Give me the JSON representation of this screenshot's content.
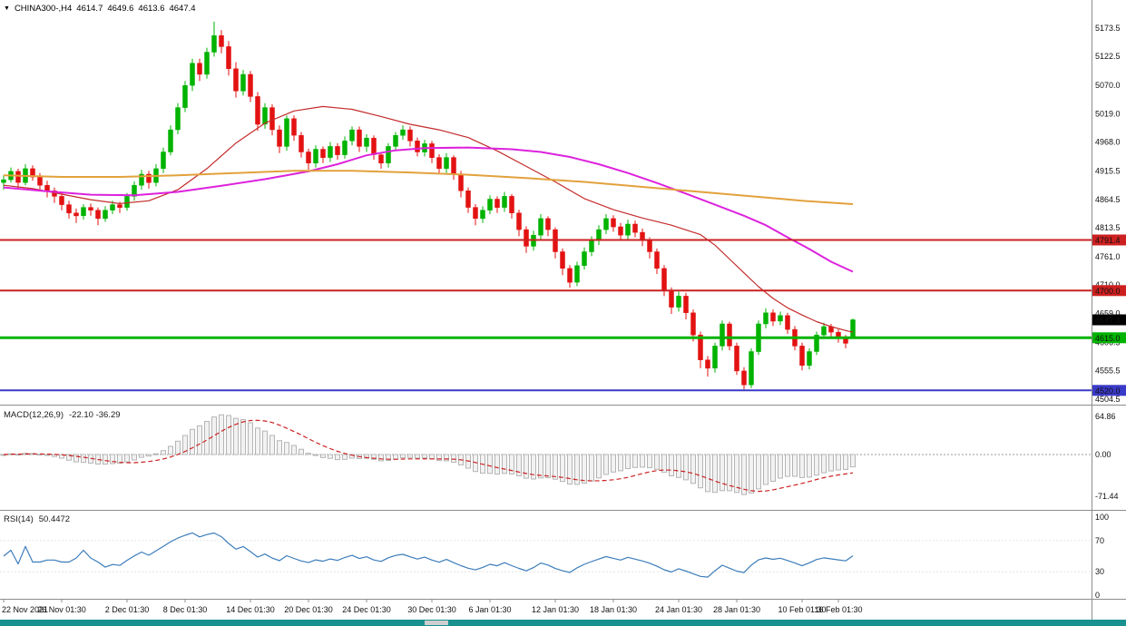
{
  "header": {
    "menu_icon": "▼",
    "symbol_period": "CHINA300-,H4",
    "open": "4614.7",
    "high": "4649.6",
    "low": "4613.6",
    "close": "4647.4"
  },
  "indicators": {
    "macd_label": "MACD(12,26,9)",
    "macd_values": "-22.10 -36.29",
    "rsi_label": "RSI(14)",
    "rsi_value": "50.4472"
  },
  "colors": {
    "candle_up": "#00b300",
    "candle_down": "#e31212",
    "macd_fill": "#f2f2f2",
    "macd_stroke": "#b5b5b5",
    "macd_signal": "#cc2222",
    "rsi_line": "#3c7dbb",
    "separator": "#8c8c8c",
    "axis_text": "#111111",
    "tag_text": "#ffffff",
    "bid_tag_bg": "#000000",
    "scrollbar_bg": "#18918f",
    "scrollbar_thumb": "#cfcfcf"
  },
  "chart_data": {
    "type": "candlestick",
    "symbol": "CHINA300-",
    "timeframe": "H4",
    "title": "CHINA300-,H4 4614.7 4649.6 4613.6 4647.4",
    "ylim": [
      4496,
      5211
    ],
    "grid": false,
    "y_axis_labels": [
      "5173.5",
      "5122.5",
      "5070.0",
      "5019.0",
      "4968.0",
      "4915.5",
      "4864.5",
      "4813.5",
      "4761.0",
      "4710.0",
      "4659.0",
      "4606.5",
      "4555.5",
      "4504.5"
    ],
    "x_ticks": [
      {
        "label": "22 Nov 2021",
        "i": 0
      },
      {
        "label": "26 Nov 01:30",
        "i": 8
      },
      {
        "label": "2 Dec 01:30",
        "i": 17
      },
      {
        "label": "8 Dec 01:30",
        "i": 25
      },
      {
        "label": "14 Dec 01:30",
        "i": 34
      },
      {
        "label": "20 Dec 01:30",
        "i": 42
      },
      {
        "label": "24 Dec 01:30",
        "i": 50
      },
      {
        "label": "30 Dec 01:30",
        "i": 59
      },
      {
        "label": "6 Jan 01:30",
        "i": 67
      },
      {
        "label": "12 Jan 01:30",
        "i": 76
      },
      {
        "label": "18 Jan 01:30",
        "i": 84
      },
      {
        "label": "24 Jan 01:30",
        "i": 93
      },
      {
        "label": "28 Jan 01:30",
        "i": 101
      },
      {
        "label": "10 Feb 01:30",
        "i": 110
      },
      {
        "label": "16 Feb 01:30",
        "i": 115
      }
    ],
    "candles": [
      [
        4895,
        4908,
        4882,
        4900
      ],
      [
        4900,
        4922,
        4895,
        4915
      ],
      [
        4915,
        4920,
        4885,
        4895
      ],
      [
        4895,
        4928,
        4890,
        4920
      ],
      [
        4920,
        4926,
        4898,
        4905
      ],
      [
        4905,
        4912,
        4880,
        4890
      ],
      [
        4890,
        4898,
        4868,
        4880
      ],
      [
        4880,
        4886,
        4858,
        4870
      ],
      [
        4870,
        4876,
        4845,
        4855
      ],
      [
        4855,
        4862,
        4830,
        4840
      ],
      [
        4840,
        4848,
        4822,
        4835
      ],
      [
        4835,
        4856,
        4828,
        4850
      ],
      [
        4850,
        4857,
        4835,
        4845
      ],
      [
        4845,
        4850,
        4818,
        4830
      ],
      [
        4830,
        4852,
        4824,
        4845
      ],
      [
        4845,
        4862,
        4838,
        4855
      ],
      [
        4855,
        4860,
        4840,
        4850
      ],
      [
        4850,
        4876,
        4844,
        4870
      ],
      [
        4870,
        4897,
        4862,
        4890
      ],
      [
        4890,
        4918,
        4882,
        4910
      ],
      [
        4910,
        4916,
        4884,
        4895
      ],
      [
        4895,
        4928,
        4888,
        4920
      ],
      [
        4920,
        4958,
        4912,
        4950
      ],
      [
        4950,
        4998,
        4944,
        4990
      ],
      [
        4990,
        5038,
        4982,
        5030
      ],
      [
        5030,
        5078,
        5022,
        5070
      ],
      [
        5070,
        5118,
        5060,
        5110
      ],
      [
        5110,
        5118,
        5078,
        5090
      ],
      [
        5090,
        5138,
        5082,
        5130
      ],
      [
        5130,
        5185,
        5122,
        5160
      ],
      [
        5160,
        5170,
        5128,
        5140
      ],
      [
        5140,
        5150,
        5088,
        5100
      ],
      [
        5100,
        5112,
        5048,
        5060
      ],
      [
        5060,
        5098,
        5052,
        5090
      ],
      [
        5090,
        5096,
        5040,
        5050
      ],
      [
        5050,
        5058,
        4988,
        5000
      ],
      [
        5000,
        5038,
        4992,
        5030
      ],
      [
        5030,
        5036,
        4980,
        4990
      ],
      [
        4990,
        4998,
        4948,
        4960
      ],
      [
        4960,
        5016,
        4952,
        5010
      ],
      [
        5010,
        5016,
        4970,
        4980
      ],
      [
        4980,
        4986,
        4940,
        4950
      ],
      [
        4950,
        4956,
        4918,
        4930
      ],
      [
        4930,
        4962,
        4922,
        4955
      ],
      [
        4955,
        4960,
        4930,
        4940
      ],
      [
        4940,
        4968,
        4932,
        4960
      ],
      [
        4960,
        4966,
        4936,
        4945
      ],
      [
        4945,
        4978,
        4938,
        4970
      ],
      [
        4970,
        4996,
        4962,
        4990
      ],
      [
        4990,
        4996,
        4950,
        4960
      ],
      [
        4960,
        4982,
        4950,
        4975
      ],
      [
        4975,
        4980,
        4936,
        4945
      ],
      [
        4945,
        4950,
        4920,
        4930
      ],
      [
        4930,
        4966,
        4922,
        4960
      ],
      [
        4960,
        4986,
        4952,
        4980
      ],
      [
        4980,
        4998,
        4972,
        4990
      ],
      [
        4990,
        4996,
        4960,
        4970
      ],
      [
        4970,
        4976,
        4942,
        4950
      ],
      [
        4950,
        4972,
        4942,
        4965
      ],
      [
        4965,
        4970,
        4930,
        4940
      ],
      [
        4940,
        4946,
        4910,
        4920
      ],
      [
        4920,
        4948,
        4912,
        4940
      ],
      [
        4940,
        4944,
        4900,
        4910
      ],
      [
        4910,
        4916,
        4868,
        4880
      ],
      [
        4880,
        4886,
        4840,
        4850
      ],
      [
        4850,
        4856,
        4818,
        4830
      ],
      [
        4830,
        4852,
        4822,
        4845
      ],
      [
        4845,
        4872,
        4838,
        4865
      ],
      [
        4865,
        4870,
        4840,
        4850
      ],
      [
        4850,
        4878,
        4842,
        4870
      ],
      [
        4870,
        4874,
        4830,
        4840
      ],
      [
        4840,
        4846,
        4798,
        4810
      ],
      [
        4810,
        4816,
        4768,
        4780
      ],
      [
        4780,
        4808,
        4772,
        4800
      ],
      [
        4800,
        4838,
        4792,
        4830
      ],
      [
        4830,
        4834,
        4798,
        4810
      ],
      [
        4810,
        4814,
        4758,
        4770
      ],
      [
        4770,
        4776,
        4728,
        4740
      ],
      [
        4740,
        4746,
        4705,
        4715
      ],
      [
        4715,
        4752,
        4708,
        4745
      ],
      [
        4745,
        4778,
        4738,
        4770
      ],
      [
        4770,
        4798,
        4762,
        4790
      ],
      [
        4790,
        4818,
        4782,
        4810
      ],
      [
        4810,
        4838,
        4802,
        4830
      ],
      [
        4830,
        4836,
        4806,
        4815
      ],
      [
        4815,
        4822,
        4790,
        4800
      ],
      [
        4800,
        4828,
        4792,
        4820
      ],
      [
        4820,
        4826,
        4796,
        4805
      ],
      [
        4805,
        4812,
        4780,
        4790
      ],
      [
        4790,
        4796,
        4758,
        4770
      ],
      [
        4770,
        4776,
        4730,
        4740
      ],
      [
        4740,
        4746,
        4690,
        4700
      ],
      [
        4700,
        4706,
        4658,
        4670
      ],
      [
        4670,
        4698,
        4662,
        4690
      ],
      [
        4690,
        4696,
        4648,
        4660
      ],
      [
        4660,
        4666,
        4608,
        4620
      ],
      [
        4620,
        4626,
        4560,
        4575
      ],
      [
        4575,
        4582,
        4545,
        4560
      ],
      [
        4560,
        4606,
        4552,
        4600
      ],
      [
        4600,
        4646,
        4592,
        4640
      ],
      [
        4640,
        4644,
        4592,
        4600
      ],
      [
        4600,
        4606,
        4548,
        4555
      ],
      [
        4555,
        4562,
        4522,
        4530
      ],
      [
        4530,
        4596,
        4524,
        4590
      ],
      [
        4590,
        4646,
        4584,
        4640
      ],
      [
        4640,
        4668,
        4632,
        4660
      ],
      [
        4660,
        4666,
        4636,
        4645
      ],
      [
        4645,
        4662,
        4638,
        4655
      ],
      [
        4655,
        4660,
        4622,
        4630
      ],
      [
        4630,
        4636,
        4592,
        4600
      ],
      [
        4600,
        4606,
        4556,
        4565
      ],
      [
        4565,
        4596,
        4558,
        4590
      ],
      [
        4590,
        4626,
        4584,
        4620
      ],
      [
        4620,
        4642,
        4614,
        4635
      ],
      [
        4635,
        4640,
        4616,
        4625
      ],
      [
        4625,
        4630,
        4606,
        4615
      ],
      [
        4615,
        4620,
        4596,
        4605
      ],
      [
        4614.7,
        4649.6,
        4613.6,
        4647.4
      ]
    ],
    "moving_averages": [
      {
        "name": "fast-red",
        "color": "#c42b2b",
        "width": 1.2,
        "points": [
          [
            0,
            4890
          ],
          [
            4,
            4884
          ],
          [
            8,
            4874
          ],
          [
            12,
            4864
          ],
          [
            16,
            4857
          ],
          [
            20,
            4862
          ],
          [
            24,
            4882
          ],
          [
            28,
            4920
          ],
          [
            32,
            4966
          ],
          [
            36,
            5002
          ],
          [
            40,
            5024
          ],
          [
            44,
            5032
          ],
          [
            48,
            5027
          ],
          [
            52,
            5014
          ],
          [
            56,
            5000
          ],
          [
            60,
            4990
          ],
          [
            64,
            4976
          ],
          [
            68,
            4952
          ],
          [
            72,
            4924
          ],
          [
            76,
            4896
          ],
          [
            80,
            4866
          ],
          [
            84,
            4846
          ],
          [
            88,
            4831
          ],
          [
            92,
            4818
          ],
          [
            96,
            4801
          ],
          [
            98,
            4782
          ],
          [
            100,
            4757
          ],
          [
            102,
            4732
          ],
          [
            104,
            4707
          ],
          [
            106,
            4686
          ],
          [
            108,
            4669
          ],
          [
            110,
            4656
          ],
          [
            112,
            4644
          ],
          [
            114,
            4635
          ],
          [
            116,
            4628
          ],
          [
            117,
            4625
          ]
        ]
      },
      {
        "name": "mid-magenta",
        "color": "#dd22dd",
        "width": 2,
        "points": [
          [
            0,
            4886
          ],
          [
            6,
            4879
          ],
          [
            12,
            4873
          ],
          [
            18,
            4872
          ],
          [
            24,
            4878
          ],
          [
            30,
            4889
          ],
          [
            36,
            4901
          ],
          [
            42,
            4915
          ],
          [
            46,
            4928
          ],
          [
            50,
            4944
          ],
          [
            54,
            4953
          ],
          [
            58,
            4957
          ],
          [
            64,
            4958
          ],
          [
            70,
            4955
          ],
          [
            74,
            4950
          ],
          [
            78,
            4941
          ],
          [
            82,
            4928
          ],
          [
            86,
            4912
          ],
          [
            90,
            4894
          ],
          [
            94,
            4875
          ],
          [
            98,
            4855
          ],
          [
            102,
            4835
          ],
          [
            105,
            4818
          ],
          [
            108,
            4796
          ],
          [
            111,
            4775
          ],
          [
            114,
            4752
          ],
          [
            116,
            4740
          ],
          [
            117,
            4734
          ]
        ]
      },
      {
        "name": "slow-orange",
        "color": "#e2a13c",
        "width": 2,
        "points": [
          [
            0,
            4908
          ],
          [
            8,
            4905
          ],
          [
            16,
            4905
          ],
          [
            24,
            4908
          ],
          [
            32,
            4912
          ],
          [
            40,
            4916
          ],
          [
            48,
            4916
          ],
          [
            56,
            4913
          ],
          [
            64,
            4909
          ],
          [
            72,
            4903
          ],
          [
            80,
            4896
          ],
          [
            88,
            4887
          ],
          [
            96,
            4878
          ],
          [
            104,
            4869
          ],
          [
            110,
            4862
          ],
          [
            117,
            4856
          ]
        ]
      }
    ],
    "hlines": [
      {
        "label": "4791.4",
        "value": 4791.4,
        "color": "#cc2020",
        "width": 2
      },
      {
        "label": "4700.0",
        "value": 4700.0,
        "color": "#cc2020",
        "width": 2
      },
      {
        "label": "4615.0",
        "value": 4615.0,
        "color": "#00b300",
        "width": 3
      },
      {
        "label": "4520.0",
        "value": 4520.0,
        "color": "#3a3ac8",
        "width": 2
      }
    ],
    "bid": {
      "label": "4647.4",
      "value": 4647.4
    },
    "macd": {
      "params": [
        12,
        26,
        9
      ],
      "main": -22.1,
      "signal": -36.29,
      "scale_labels": [
        {
          "text": "64.86",
          "v": 64.86
        },
        {
          "text": "0.00",
          "v": 0
        },
        {
          "text": "-71.44",
          "v": -71.44
        }
      ]
    },
    "rsi": {
      "period": 14,
      "value": 50.4472,
      "levels": [
        70,
        30
      ],
      "scale_labels": [
        {
          "text": "100",
          "v": 100
        },
        {
          "text": "70",
          "v": 70
        },
        {
          "text": "30",
          "v": 30
        },
        {
          "text": "0",
          "v": 0
        }
      ]
    }
  }
}
